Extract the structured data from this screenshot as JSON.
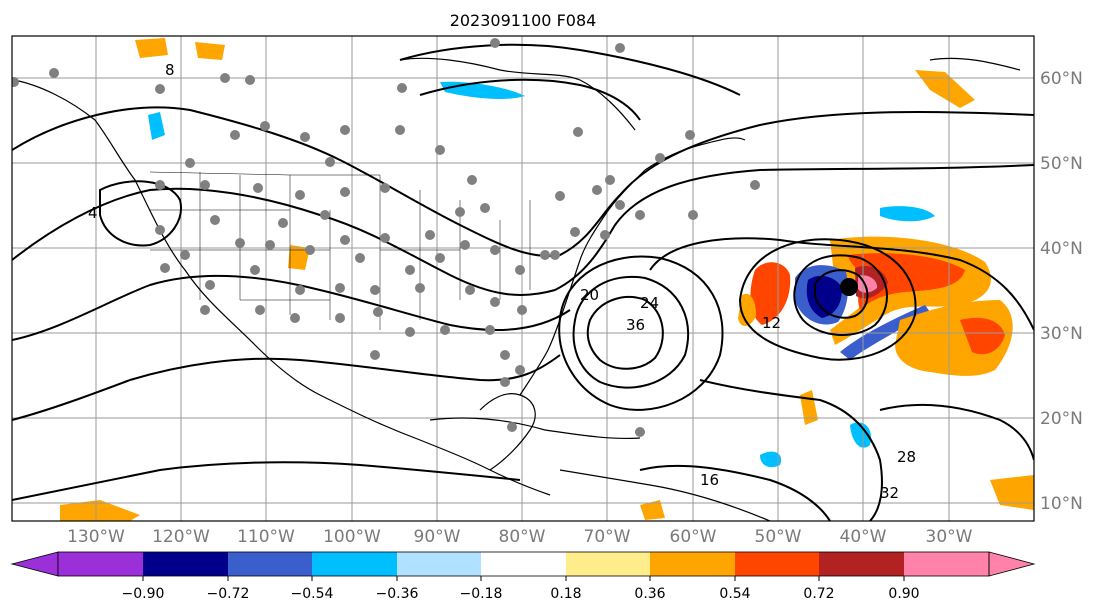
{
  "title": "2023091100 F084",
  "longitude_labels": [
    "130°W",
    "120°W",
    "110°W",
    "100°W",
    "90°W",
    "80°W",
    "70°W",
    "60°W",
    "50°W",
    "40°W",
    "30°W"
  ],
  "latitude_labels": [
    "60°N",
    "50°N",
    "40°N",
    "30°N",
    "20°N",
    "10°N"
  ],
  "colorbar": {
    "tick_labels": [
      "−0.90",
      "−0.72",
      "−0.54",
      "−0.36",
      "−0.18",
      "0.18",
      "0.36",
      "0.54",
      "0.72",
      "0.90"
    ],
    "colors": [
      "#9b30d9",
      "#00008b",
      "#3a5fcd",
      "#00bfff",
      "#b0e2ff",
      "#ffffff",
      "#ffec8b",
      "#ffa500",
      "#ff4500",
      "#b22222",
      "#ff82ab"
    ]
  },
  "contour_labels": [
    "4",
    "8",
    "12",
    "16",
    "20",
    "24",
    "28",
    "32",
    "36"
  ],
  "storm_marker_color": "#000000",
  "station_marker_color": "#808080"
}
